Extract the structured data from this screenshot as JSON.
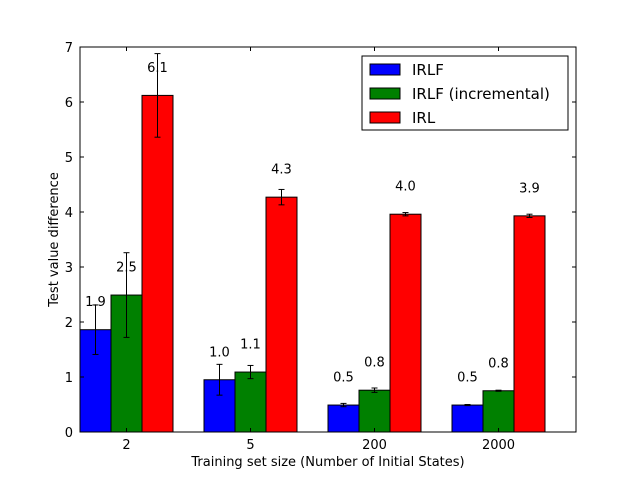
{
  "chart_data": {
    "type": "bar",
    "title": "",
    "xlabel": "Training set size (Number of Initial States)",
    "ylabel": "Test value difference",
    "categories": [
      "2",
      "5",
      "200",
      "2000"
    ],
    "ylim": [
      0,
      7
    ],
    "yticks": [
      0,
      1,
      2,
      3,
      4,
      5,
      6,
      7
    ],
    "grid": false,
    "legend_position": "top-right",
    "series": [
      {
        "name": "IRLF",
        "color": "#0000ff",
        "values": [
          1.86,
          0.95,
          0.49,
          0.49
        ],
        "errors": [
          0.45,
          0.28,
          0.03,
          0.01
        ],
        "labels": [
          "1.9",
          "1.0",
          "0.5",
          "0.5"
        ]
      },
      {
        "name": "IRLF (incremental)",
        "color": "#008000",
        "values": [
          2.49,
          1.09,
          0.76,
          0.75
        ],
        "errors": [
          0.77,
          0.12,
          0.04,
          0.01
        ],
        "labels": [
          "2.5",
          "1.1",
          "0.8",
          "0.8"
        ]
      },
      {
        "name": "IRL",
        "color": "#ff0000",
        "values": [
          6.12,
          4.27,
          3.96,
          3.93
        ],
        "errors": [
          0.76,
          0.14,
          0.03,
          0.03
        ],
        "labels": [
          "6.1",
          "4.3",
          "4.0",
          "3.9"
        ]
      }
    ]
  }
}
